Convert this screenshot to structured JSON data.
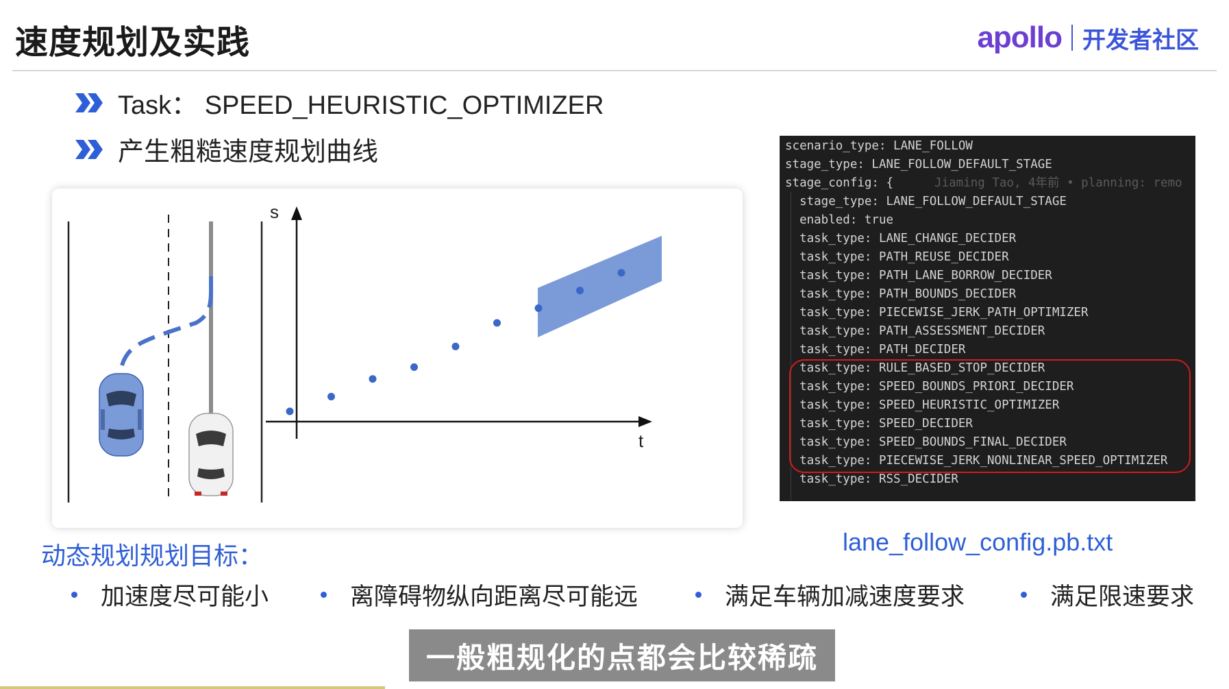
{
  "slide": {
    "title": "速度规划及实践",
    "logo_word": "apollo",
    "logo_community": "开发者社区"
  },
  "bullets": [
    {
      "label": "Task：",
      "value": "SPEED_HEURISTIC_OPTIMIZER"
    },
    {
      "label": "产生粗糙速度规划曲线"
    }
  ],
  "diagram": {
    "s_axis_label": "s",
    "t_axis_label": "t",
    "st_points": [
      [
        0,
        0
      ],
      [
        1,
        0.5
      ],
      [
        2,
        1.1
      ],
      [
        3,
        1.5
      ],
      [
        4,
        2.2
      ],
      [
        5,
        3.0
      ],
      [
        6,
        3.5
      ],
      [
        7,
        4.1
      ],
      [
        8,
        4.7
      ]
    ],
    "obstacle_color": "#7b9ad8",
    "point_color": "#3a67c8",
    "path_color": "#4a72c8"
  },
  "config": {
    "lines": [
      {
        "text": "scenario_type: LANE_FOLLOW"
      },
      {
        "text": "stage_type: LANE_FOLLOW_DEFAULT_STAGE"
      },
      {
        "text": "stage_config: {",
        "blame": "Jiaming Tao, 4年前 • planning: remo"
      },
      {
        "text": "  stage_type: LANE_FOLLOW_DEFAULT_STAGE"
      },
      {
        "text": "  enabled: true"
      },
      {
        "text": "  task_type: LANE_CHANGE_DECIDER"
      },
      {
        "text": "  task_type: PATH_REUSE_DECIDER"
      },
      {
        "text": "  task_type: PATH_LANE_BORROW_DECIDER"
      },
      {
        "text": "  task_type: PATH_BOUNDS_DECIDER"
      },
      {
        "text": "  task_type: PIECEWISE_JERK_PATH_OPTIMIZER"
      },
      {
        "text": "  task_type: PATH_ASSESSMENT_DECIDER"
      },
      {
        "text": "  task_type: PATH_DECIDER"
      },
      {
        "text": "  task_type: RULE_BASED_STOP_DECIDER"
      },
      {
        "text": "  task_type: SPEED_BOUNDS_PRIORI_DECIDER"
      },
      {
        "text": "  task_type: SPEED_HEURISTIC_OPTIMIZER"
      },
      {
        "text": "  task_type: SPEED_DECIDER"
      },
      {
        "text": "  task_type: SPEED_BOUNDS_FINAL_DECIDER"
      },
      {
        "text": "  task_type: PIECEWISE_JERK_NONLINEAR_SPEED_OPTIMIZER"
      },
      {
        "text": "  task_type: RSS_DECIDER"
      }
    ],
    "highlight_color": "#d51a1a",
    "file_caption": "lane_follow_config.pb.txt"
  },
  "goals": {
    "heading": "动态规划规划目标：",
    "items": [
      "加速度尽可能小",
      "离障碍物纵向距离尽可能远",
      "满足车辆加减速度要求",
      "满足限速要求"
    ]
  },
  "subtitle": "一般粗规化的点都会比较稀疏",
  "colors": {
    "accent_blue": "#2f5fd6",
    "logo_purple": "#6c3fd1"
  }
}
